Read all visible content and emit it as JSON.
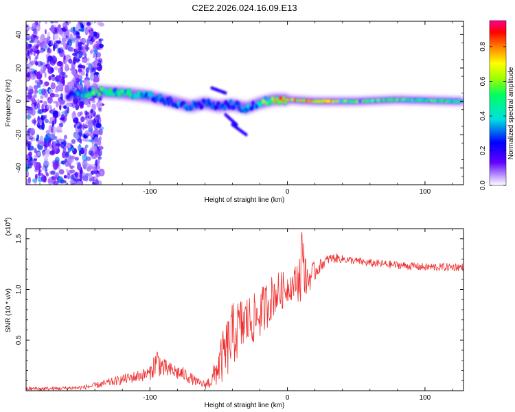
{
  "title": "C2E2.2026.024.16.09.E13",
  "chart_data": [
    {
      "type": "heatmap",
      "title": "C2E2.2026.024.16.09.E13",
      "xlabel": "Height of straight line (km)",
      "ylabel": "Frequency (Hz)",
      "xlim": [
        -190,
        128
      ],
      "ylim": [
        -50,
        48
      ],
      "xticks": [
        -100,
        0,
        100
      ],
      "yticks": [
        -40,
        -20,
        0,
        20,
        40
      ],
      "colorbar": {
        "label": "Normalized spectral amplitude",
        "range": [
          0,
          0.95
        ],
        "ticks": [
          0.0,
          0.2,
          0.4,
          0.6,
          0.8
        ],
        "colors": [
          "#ffffff",
          "#c9a8ff",
          "#6000ff",
          "#0000ff",
          "#00e0e0",
          "#00ff60",
          "#a0ff00",
          "#ffff00",
          "#ff8000",
          "#ff0000",
          "#ff0090"
        ]
      },
      "ridge": {
        "x": [
          -160,
          -140,
          -120,
          -100,
          -90,
          -80,
          -70,
          -60,
          -50,
          -40,
          -30,
          -20,
          -10,
          0,
          20,
          50,
          80,
          128
        ],
        "y": [
          3,
          6,
          5,
          3,
          1,
          -1,
          -3,
          -1,
          -3,
          -2,
          -4,
          -1,
          1,
          1,
          0,
          0,
          1,
          0
        ],
        "amplitude": [
          0.25,
          0.55,
          0.5,
          0.45,
          0.35,
          0.4,
          0.35,
          0.3,
          0.3,
          0.3,
          0.35,
          0.5,
          0.8,
          0.85,
          0.9,
          0.6,
          0.55,
          0.55
        ]
      },
      "noise_region": [
        -190,
        -135
      ],
      "side_streaks": [
        {
          "x": [
            -45,
            -37
          ],
          "y": [
            -8,
            -14
          ]
        },
        {
          "x": [
            -40,
            -30
          ],
          "y": [
            -14,
            -20
          ]
        },
        {
          "x": [
            -55,
            -45
          ],
          "y": [
            8,
            5
          ]
        }
      ]
    },
    {
      "type": "line",
      "title": "",
      "xlabel": "Height of straight line (km)",
      "ylabel": "SNR (10 * v/v)",
      "multiplier": "(x10",
      "multiplier_exp": "4",
      "multiplier_close": ")",
      "xlim": [
        -190,
        128
      ],
      "ylim": [
        0,
        1.6
      ],
      "xticks": [
        -100,
        0,
        100
      ],
      "yticks": [
        0.5,
        1.0,
        1.5
      ],
      "ytick_labels": [
        "0.5",
        "1.0",
        "1.5"
      ],
      "color": "#ee2b2b",
      "x": [
        -190,
        -170,
        -150,
        -140,
        -130,
        -120,
        -110,
        -100,
        -95,
        -90,
        -85,
        -80,
        -75,
        -70,
        -65,
        -60,
        -55,
        -50,
        -45,
        -40,
        -35,
        -30,
        -25,
        -20,
        -15,
        -10,
        -5,
        0,
        5,
        10,
        15,
        20,
        25,
        30,
        35,
        40,
        50,
        60,
        70,
        80,
        90,
        100,
        110,
        128
      ],
      "y": [
        0.02,
        0.02,
        0.03,
        0.05,
        0.08,
        0.11,
        0.14,
        0.17,
        0.3,
        0.22,
        0.2,
        0.18,
        0.16,
        0.12,
        0.08,
        0.06,
        0.1,
        0.25,
        0.38,
        0.55,
        0.62,
        0.68,
        0.7,
        0.76,
        0.85,
        0.95,
        0.98,
        1.02,
        1.06,
        1.15,
        1.1,
        1.18,
        1.25,
        1.3,
        1.31,
        1.3,
        1.28,
        1.26,
        1.25,
        1.24,
        1.23,
        1.22,
        1.22,
        1.22
      ],
      "noise": [
        0.02,
        0.02,
        0.02,
        0.03,
        0.04,
        0.05,
        0.06,
        0.07,
        0.15,
        0.1,
        0.08,
        0.08,
        0.07,
        0.06,
        0.04,
        0.04,
        0.08,
        0.2,
        0.3,
        0.32,
        0.3,
        0.28,
        0.25,
        0.25,
        0.24,
        0.22,
        0.2,
        0.15,
        0.15,
        0.3,
        0.15,
        0.1,
        0.06,
        0.05,
        0.05,
        0.04,
        0.04,
        0.04,
        0.04,
        0.04,
        0.04,
        0.04,
        0.04,
        0.04
      ]
    }
  ]
}
